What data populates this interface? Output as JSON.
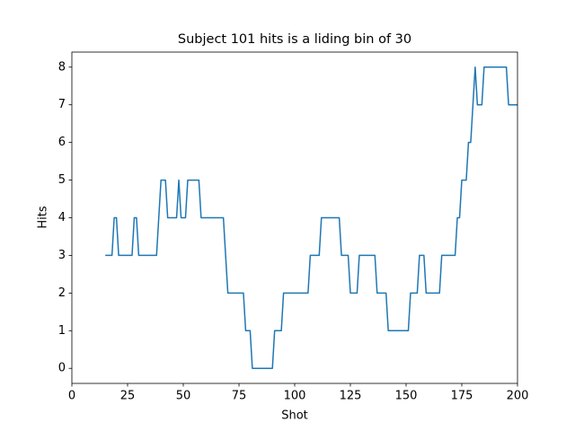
{
  "chart_data": {
    "type": "line",
    "title": "Subject 101 hits is a liding bin of 30",
    "xlabel": "Shot",
    "ylabel": "Hits",
    "x": [
      15,
      16,
      17,
      18,
      19,
      20,
      21,
      22,
      23,
      24,
      25,
      26,
      27,
      28,
      29,
      30,
      31,
      32,
      33,
      34,
      35,
      36,
      37,
      38,
      39,
      40,
      41,
      42,
      43,
      44,
      45,
      46,
      47,
      48,
      49,
      50,
      51,
      52,
      53,
      54,
      55,
      56,
      57,
      58,
      59,
      60,
      61,
      62,
      63,
      64,
      65,
      66,
      67,
      68,
      69,
      70,
      71,
      72,
      73,
      74,
      75,
      76,
      77,
      78,
      79,
      80,
      81,
      82,
      83,
      84,
      85,
      86,
      87,
      88,
      89,
      90,
      91,
      92,
      93,
      94,
      95,
      96,
      97,
      98,
      99,
      100,
      101,
      102,
      103,
      104,
      105,
      106,
      107,
      108,
      109,
      110,
      111,
      112,
      113,
      114,
      115,
      116,
      117,
      118,
      119,
      120,
      121,
      122,
      123,
      124,
      125,
      126,
      127,
      128,
      129,
      130,
      131,
      132,
      133,
      134,
      135,
      136,
      137,
      138,
      139,
      140,
      141,
      142,
      143,
      144,
      145,
      146,
      147,
      148,
      149,
      150,
      151,
      152,
      153,
      154,
      155,
      156,
      157,
      158,
      159,
      160,
      161,
      162,
      163,
      164,
      165,
      166,
      167,
      168,
      169,
      170,
      171,
      172,
      173,
      174,
      175,
      176,
      177,
      178,
      179,
      180,
      181,
      182,
      183,
      184,
      185,
      186,
      187,
      188,
      189,
      190,
      191,
      192,
      193,
      194,
      195,
      196,
      197,
      198,
      199,
      200
    ],
    "series": [
      {
        "color": "#1f77b4",
        "values": [
          3,
          3,
          3,
          3,
          4,
          4,
          3,
          3,
          3,
          3,
          3,
          3,
          3,
          4,
          4,
          3,
          3,
          3,
          3,
          3,
          3,
          3,
          3,
          3,
          4,
          5,
          5,
          5,
          4,
          4,
          4,
          4,
          4,
          5,
          4,
          4,
          4,
          5,
          5,
          5,
          5,
          5,
          5,
          4,
          4,
          4,
          4,
          4,
          4,
          4,
          4,
          4,
          4,
          4,
          3,
          2,
          2,
          2,
          2,
          2,
          2,
          2,
          2,
          1,
          1,
          1,
          0,
          0,
          0,
          0,
          0,
          0,
          0,
          0,
          0,
          0,
          1,
          1,
          1,
          1,
          2,
          2,
          2,
          2,
          2,
          2,
          2,
          2,
          2,
          2,
          2,
          2,
          3,
          3,
          3,
          3,
          3,
          4,
          4,
          4,
          4,
          4,
          4,
          4,
          4,
          4,
          3,
          3,
          3,
          3,
          2,
          2,
          2,
          2,
          3,
          3,
          3,
          3,
          3,
          3,
          3,
          3,
          2,
          2,
          2,
          2,
          2,
          1,
          1,
          1,
          1,
          1,
          1,
          1,
          1,
          1,
          1,
          2,
          2,
          2,
          2,
          3,
          3,
          3,
          2,
          2,
          2,
          2,
          2,
          2,
          2,
          3,
          3,
          3,
          3,
          3,
          3,
          3,
          4,
          4,
          5,
          5,
          5,
          6,
          6,
          7,
          8,
          7,
          7,
          7,
          8,
          8,
          8,
          8,
          8,
          8,
          8,
          8,
          8,
          8,
          8,
          7,
          7,
          7,
          7,
          7
        ]
      }
    ],
    "xlim": [
      0,
      200
    ],
    "xticks": [
      0,
      25,
      50,
      75,
      100,
      125,
      150,
      175,
      200
    ],
    "ylim": [
      -0.4,
      8.4
    ],
    "yticks": [
      0,
      1,
      2,
      3,
      4,
      5,
      6,
      7,
      8
    ],
    "grid": false
  }
}
